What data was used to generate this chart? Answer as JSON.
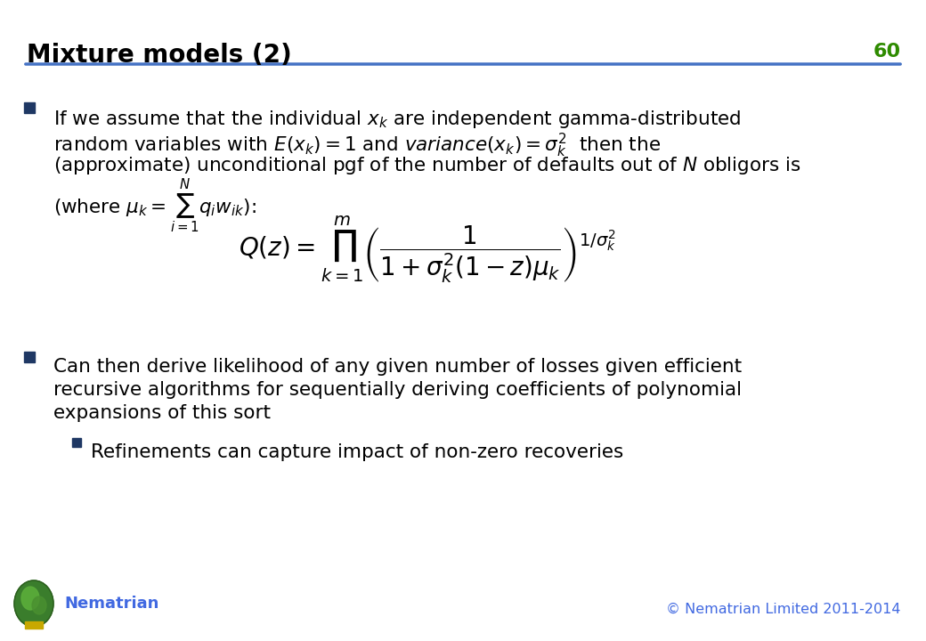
{
  "title": "Mixture models (2)",
  "slide_number": "60",
  "title_color": "#000000",
  "title_fontsize": 20,
  "slide_number_color": "#2E8B00",
  "slide_number_fontsize": 16,
  "header_line_color": "#4472C4",
  "background_color": "#FFFFFF",
  "bullet_color": "#1F3864",
  "bullet1_text_line1": "If we assume that the individual $x_k$ are independent gamma-distributed",
  "bullet1_text_line2": "random variables with $E(x_k) = 1$ and $\\mathit{variance}(x_k) = \\sigma_k^2$  then the",
  "bullet1_text_line3": "(approximate) unconditional pgf of the number of defaults out of $N$ obligors is",
  "bullet1_text_line4": "(where $\\mu_k = \\sum_{i=1}^{N} q_i w_{ik}$):",
  "formula": "$Q(z) = \\prod_{k=1}^{m} \\left( \\dfrac{1}{1 + \\sigma_k^2(1-z)\\mu_k} \\right)^{1/\\sigma_k^2}$",
  "bullet2_text_line1": "Can then derive likelihood of any given number of losses given efficient",
  "bullet2_text_line2": "recursive algorithms for sequentially deriving coefficients of polynomial",
  "bullet2_text_line3": "expansions of this sort",
  "sub_bullet_text": "Refinements can capture impact of non-zero recoveries",
  "footer_left": "Nematrian",
  "footer_right": "© Nematrian Limited 2011-2014",
  "footer_color": "#4169E1",
  "text_color": "#000000",
  "text_fontsize": 15.5
}
